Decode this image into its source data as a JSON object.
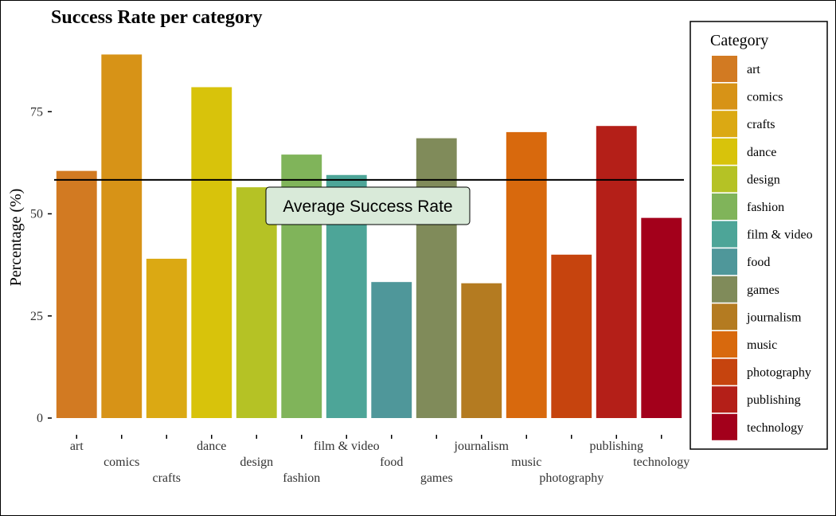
{
  "chart_data": {
    "type": "bar",
    "title": "Success Rate per category",
    "xlabel": "",
    "ylabel": "Percentage (%)",
    "ylim": [
      0,
      93
    ],
    "yticks": [
      0,
      25,
      50,
      75
    ],
    "categories": [
      "art",
      "comics",
      "crafts",
      "dance",
      "design",
      "fashion",
      "film & video",
      "food",
      "games",
      "journalism",
      "music",
      "photography",
      "publishing",
      "technology"
    ],
    "values": [
      60.5,
      89,
      39,
      81,
      56.5,
      64.5,
      59.5,
      33.3,
      68.5,
      33,
      70,
      40,
      71.5,
      49
    ],
    "colors": [
      "#D27A22",
      "#D79317",
      "#DBA913",
      "#D8C30B",
      "#B5C225",
      "#80B45A",
      "#4DA598",
      "#4F979A",
      "#808B5A",
      "#B47B21",
      "#D8690D",
      "#C6440E",
      "#B41F18",
      "#A3001B"
    ],
    "reference_line": {
      "value": 58.3,
      "label": "Average Success Rate"
    },
    "legend": {
      "title": "Category",
      "position": "right",
      "entries": [
        "art",
        "comics",
        "crafts",
        "dance",
        "design",
        "fashion",
        "film & video",
        "food",
        "games",
        "journalism",
        "music",
        "photography",
        "publishing",
        "technology"
      ]
    },
    "grid": false
  }
}
